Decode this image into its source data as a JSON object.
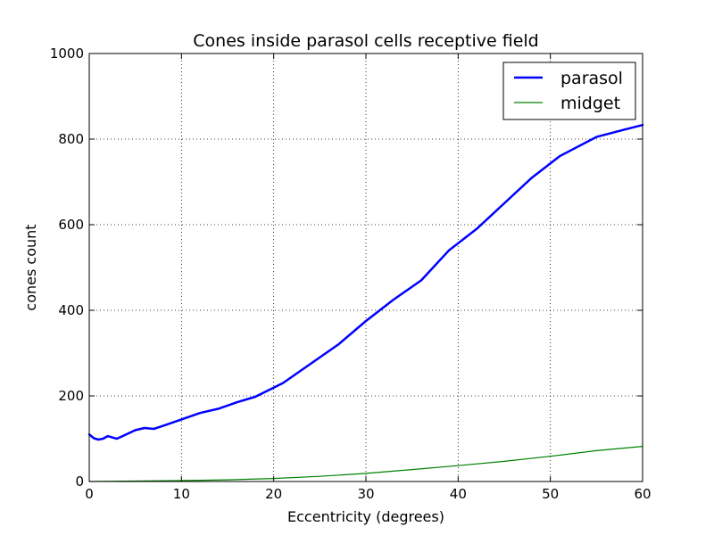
{
  "chart_data": {
    "type": "line",
    "title": "Cones inside parasol cells receptive field",
    "xlabel": "Eccentricity (degrees)",
    "ylabel": "cones count",
    "xlim": [
      0,
      60
    ],
    "ylim": [
      0,
      1000
    ],
    "xticks": [
      0,
      10,
      20,
      30,
      40,
      50,
      60
    ],
    "yticks": [
      0,
      200,
      400,
      600,
      800,
      1000
    ],
    "grid": true,
    "legend_position": "top-right",
    "series": [
      {
        "name": "parasol",
        "color": "#0000ff",
        "linewidth": 2.5,
        "x": [
          0,
          0.5,
          1,
          1.5,
          2,
          2.5,
          3,
          3.5,
          4,
          5,
          6,
          7,
          8,
          10,
          12,
          14,
          16,
          18,
          21,
          24,
          27,
          30,
          33,
          36,
          39,
          42,
          45,
          48,
          51,
          55,
          58,
          60
        ],
        "y": [
          110,
          101,
          98,
          100,
          106,
          103,
          100,
          105,
          110,
          120,
          125,
          123,
          130,
          145,
          160,
          170,
          185,
          198,
          230,
          275,
          320,
          375,
          425,
          470,
          540,
          590,
          650,
          710,
          760,
          805,
          822,
          833
        ]
      },
      {
        "name": "midget",
        "color": "#008000",
        "linewidth": 1.2,
        "x": [
          0,
          5,
          10,
          15,
          20,
          25,
          30,
          35,
          40,
          45,
          50,
          55,
          60
        ],
        "y": [
          0,
          1,
          2,
          4,
          7,
          12,
          19,
          28,
          37,
          47,
          59,
          72,
          82
        ]
      }
    ]
  }
}
